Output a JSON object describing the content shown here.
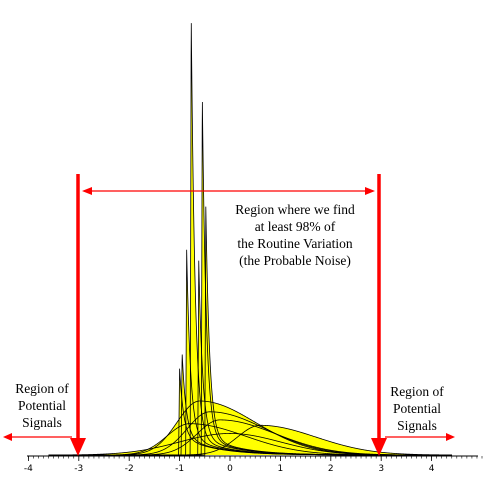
{
  "chart_data": {
    "type": "line",
    "title": "",
    "xlabel": "",
    "ylabel": "",
    "xlim": [
      -4,
      5
    ],
    "x_ticks": [
      "-4",
      "-3",
      "-2",
      "-1",
      "0",
      "1",
      "2",
      "3",
      "4"
    ],
    "limits": [
      -3,
      3
    ],
    "series_description": "Overlaid probability density curves of many distribution shapes, filled yellow; highly skewed curves produce tall narrow peaks between x = -1 and x = -0.4",
    "series": [
      {
        "shape": "normal",
        "values_x": [
          -3,
          -2,
          -1,
          0,
          1,
          2,
          3
        ],
        "values_y": [
          0.004,
          0.054,
          0.242,
          0.399,
          0.242,
          0.054,
          0.004
        ]
      },
      {
        "shape": "spike",
        "mode": -0.77,
        "peak": 8.2
      },
      {
        "shape": "spike",
        "mode": -0.55,
        "peak": 6.7
      },
      {
        "shape": "spike",
        "mode": -0.48,
        "peak": 4.6
      },
      {
        "shape": "spike",
        "mode": -0.86,
        "peak": 3.8
      },
      {
        "shape": "spike",
        "mode": -0.62,
        "peak": 3.6
      },
      {
        "shape": "spike",
        "mode": -0.95,
        "peak": 1.9
      },
      {
        "shape": "spike",
        "mode": -1.0,
        "peak": 1.6
      },
      {
        "shape": "skew",
        "mode": -0.6,
        "peak": 1.0
      },
      {
        "shape": "skew",
        "mode": -0.4,
        "peak": 0.8
      },
      {
        "shape": "skew",
        "mode": -0.2,
        "peak": 0.65
      },
      {
        "shape": "skew",
        "mode": 0.6,
        "peak": 0.55
      },
      {
        "shape": "skew",
        "mode": -0.8,
        "peak": 0.58
      }
    ],
    "annotations": {
      "center_label": [
        "Region where we find",
        "at least 98% of",
        "the Routine Variation",
        "(the Probable Noise)"
      ],
      "left_label": [
        "Region of",
        "Potential",
        "Signals"
      ],
      "right_label": [
        "Region of",
        "Potential",
        "Signals"
      ]
    },
    "colors": {
      "fill": "#ffff00",
      "curve": "#000000",
      "limit_lines": "#ff0000",
      "arrows": "#ff0000"
    }
  }
}
